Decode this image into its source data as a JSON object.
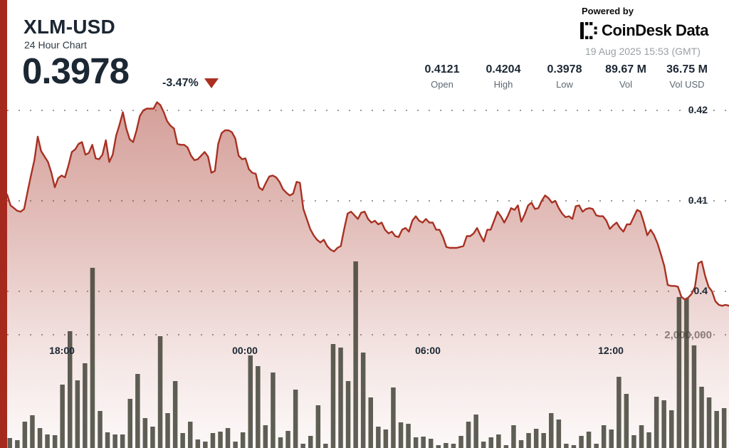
{
  "header": {
    "symbol": "XLM-USD",
    "subtitle": "24 Hour Chart",
    "price": "0.3978",
    "change": "-3.47%",
    "powered_by": "Powered by",
    "brand": "CoinDesk Data",
    "timestamp": "19 Aug 2025 15:53 (GMT)"
  },
  "stats": [
    {
      "value": "0.4121",
      "label": "Open"
    },
    {
      "value": "0.4204",
      "label": "High"
    },
    {
      "value": "0.3978",
      "label": "Low"
    },
    {
      "value": "89.67 M",
      "label": "Vol"
    },
    {
      "value": "36.75 M",
      "label": "Vol USD"
    }
  ],
  "colors": {
    "accent_red": "#a52a1d",
    "line_red": "#a83123",
    "area_red": "#a63528",
    "volume_bar": "rgba(55,56,44,0.8)",
    "grid_dot": "#9a9a9a",
    "text_dark": "#1b2733",
    "text_gray": "#5d6873",
    "volume_label_gray": "#8a8a8a"
  },
  "chart_data": {
    "type": "line",
    "title": "XLM-USD 24 Hour Chart",
    "legend": "price line with gradient area fill; volume bars overlay (15-min intervals)",
    "x_axis": {
      "ticks": [
        "18:00",
        "00:00",
        "06:00",
        "12:00"
      ],
      "grid": false
    },
    "price_axis": {
      "side": "right",
      "ticks": [
        0.42,
        0.41,
        0.4
      ],
      "tick_labels": [
        "0.42",
        "0.41",
        "0.4"
      ],
      "ylim": [
        0.396,
        0.422
      ],
      "grid": "dotted"
    },
    "volume_axis": {
      "tick": 2000000,
      "tick_label": "2,000,000",
      "grid": "dotted"
    },
    "price_series": {
      "name": "XLM-USD price",
      "open": 0.4121,
      "high": 0.4204,
      "low": 0.3978,
      "close": 0.3978,
      "values": [
        0.4107,
        0.4095,
        0.4092,
        0.4089,
        0.4088,
        0.4091,
        0.411,
        0.4128,
        0.4145,
        0.4171,
        0.4155,
        0.4149,
        0.4143,
        0.4131,
        0.4115,
        0.4125,
        0.4128,
        0.4126,
        0.4139,
        0.4154,
        0.4157,
        0.4163,
        0.4165,
        0.4151,
        0.4153,
        0.4162,
        0.4147,
        0.4146,
        0.4151,
        0.4167,
        0.4143,
        0.4151,
        0.4172,
        0.4184,
        0.4198,
        0.418,
        0.4168,
        0.4165,
        0.4178,
        0.4194,
        0.42,
        0.4202,
        0.4202,
        0.4202,
        0.4209,
        0.4206,
        0.4198,
        0.4188,
        0.4183,
        0.418,
        0.4163,
        0.4162,
        0.4162,
        0.4159,
        0.415,
        0.4145,
        0.4146,
        0.415,
        0.4154,
        0.4149,
        0.4131,
        0.4133,
        0.4163,
        0.4175,
        0.4178,
        0.4178,
        0.4176,
        0.4169,
        0.415,
        0.4146,
        0.4147,
        0.4135,
        0.4131,
        0.413,
        0.4115,
        0.4112,
        0.412,
        0.4127,
        0.4128,
        0.4126,
        0.4121,
        0.4113,
        0.4109,
        0.4106,
        0.4108,
        0.4121,
        0.412,
        0.4091,
        0.408,
        0.4069,
        0.4062,
        0.4057,
        0.4054,
        0.4057,
        0.405,
        0.4046,
        0.4044,
        0.4048,
        0.405,
        0.4069,
        0.4086,
        0.4088,
        0.4084,
        0.408,
        0.4087,
        0.4088,
        0.408,
        0.4076,
        0.4078,
        0.4074,
        0.4076,
        0.4068,
        0.4064,
        0.4066,
        0.4061,
        0.406,
        0.4068,
        0.407,
        0.4066,
        0.4078,
        0.4083,
        0.4078,
        0.4076,
        0.408,
        0.4076,
        0.4076,
        0.4068,
        0.4068,
        0.406,
        0.4049,
        0.4048,
        0.4048,
        0.4048,
        0.4049,
        0.405,
        0.4061,
        0.4061,
        0.4064,
        0.407,
        0.4062,
        0.4055,
        0.4068,
        0.4068,
        0.4078,
        0.4088,
        0.4083,
        0.4076,
        0.4083,
        0.4092,
        0.409,
        0.4095,
        0.4077,
        0.4085,
        0.4095,
        0.4098,
        0.4091,
        0.4092,
        0.41,
        0.4106,
        0.4103,
        0.4098,
        0.41,
        0.4092,
        0.4086,
        0.4082,
        0.4083,
        0.408,
        0.4094,
        0.4095,
        0.4088,
        0.4091,
        0.4092,
        0.4091,
        0.4084,
        0.4083,
        0.4083,
        0.4078,
        0.4069,
        0.4073,
        0.4076,
        0.407,
        0.4066,
        0.4074,
        0.4074,
        0.4082,
        0.409,
        0.4088,
        0.4076,
        0.4062,
        0.4068,
        0.4062,
        0.4053,
        0.4041,
        0.4028,
        0.4007,
        0.4006,
        0.4006,
        0.4005,
        0.3994,
        0.3991,
        0.3993,
        0.3997,
        0.4005,
        0.4031,
        0.4033,
        0.4017,
        0.4005,
        0.4,
        0.3989,
        0.3985,
        0.3984,
        0.3985,
        0.3984
      ]
    },
    "volume_series": {
      "name": "Volume",
      "values": [
        176000,
        138000,
        465000,
        579000,
        352000,
        239000,
        226000,
        1120000,
        2063000,
        1195000,
        1497000,
        3183000,
        654000,
        277000,
        239000,
        239000,
        868000,
        1308000,
        528000,
        377000,
        1975000,
        616000,
        1183000,
        264000,
        465000,
        151000,
        113000,
        264000,
        289000,
        352000,
        113000,
        277000,
        1635000,
        1447000,
        403000,
        1333000,
        189000,
        302000,
        1032000,
        75000,
        214000,
        755000,
        75000,
        1837000,
        1774000,
        1183000,
        3296000,
        1686000,
        893000,
        377000,
        327000,
        1069000,
        453000,
        428000,
        189000,
        201000,
        164000,
        50000,
        88000,
        75000,
        214000,
        465000,
        591000,
        113000,
        189000,
        239000,
        50000,
        403000,
        138000,
        264000,
        340000,
        264000,
        616000,
        503000,
        75000,
        50000,
        214000,
        289000,
        75000,
        403000,
        327000,
        1258000,
        956000,
        226000,
        403000,
        277000,
        906000,
        843000,
        667000,
        2667000,
        2642000,
        1812000,
        1082000,
        893000,
        654000,
        704000
      ]
    }
  }
}
